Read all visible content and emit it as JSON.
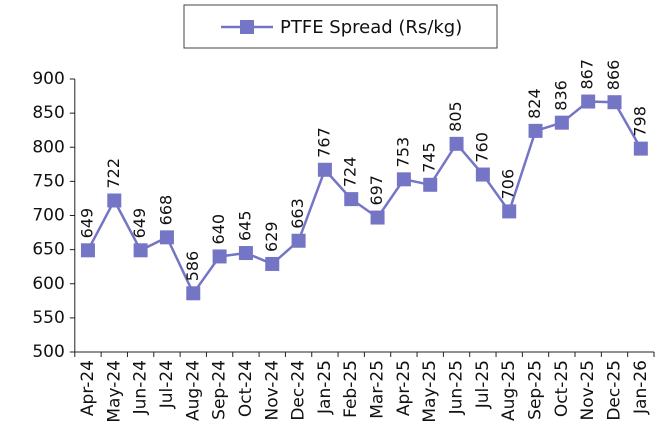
{
  "chart_data": {
    "type": "line",
    "categories": [
      "Apr-24",
      "May-24",
      "Jun-24",
      "Jul-24",
      "Aug-24",
      "Sep-24",
      "Oct-24",
      "Nov-24",
      "Dec-24",
      "Jan-25",
      "Feb-25",
      "Mar-25",
      "Apr-25",
      "May-25",
      "Jun-25",
      "Jul-25",
      "Aug-25",
      "Sep-25",
      "Oct-25",
      "Nov-25",
      "Dec-25",
      "Jan-26"
    ],
    "series": [
      {
        "name": "PTFE Spread (Rs/kg)",
        "color": "#7575c6",
        "values": [
          649,
          722,
          649,
          668,
          586,
          640,
          645,
          629,
          663,
          767,
          724,
          697,
          753,
          745,
          805,
          760,
          706,
          824,
          836,
          867,
          866,
          798
        ]
      }
    ],
    "ylim": [
      500,
      900
    ],
    "yticks": [
      500,
      550,
      600,
      650,
      700,
      750,
      800,
      850,
      900
    ],
    "legend": "top",
    "data_labels": true
  }
}
